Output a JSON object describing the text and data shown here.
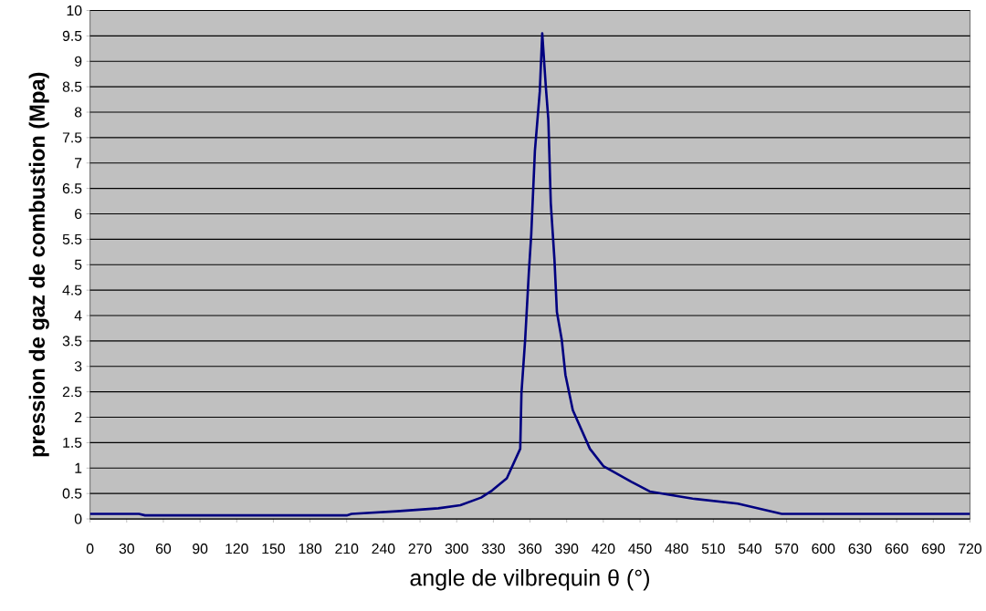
{
  "chart_data": {
    "type": "line",
    "xlabel": "angle de vilbrequin θ  (°)",
    "ylabel": "pression de gaz de combustion (Mpa)",
    "xlim": [
      0,
      720
    ],
    "ylim": [
      0,
      10
    ],
    "xticks": [
      0,
      30,
      60,
      90,
      120,
      150,
      180,
      210,
      240,
      270,
      300,
      330,
      360,
      390,
      420,
      450,
      480,
      510,
      540,
      570,
      600,
      630,
      660,
      690,
      720
    ],
    "yticks": [
      0,
      0.5,
      1,
      1.5,
      2,
      2.5,
      3,
      3.5,
      4,
      4.5,
      5,
      5.5,
      6,
      6.5,
      7,
      7.5,
      8,
      8.5,
      9,
      9.5,
      10
    ],
    "grid": "y",
    "series": [
      {
        "color": "#000080",
        "x": [
          0,
          40,
          45,
          210,
          214,
          251,
          285,
          303,
          320,
          329,
          341,
          352,
          353,
          356,
          359,
          361,
          364,
          368,
          370,
          373,
          375,
          377,
          380,
          382,
          386,
          389,
          395,
          409,
          420,
          443,
          458,
          493,
          530,
          548,
          566,
          720
        ],
        "values": [
          0.1,
          0.1,
          0.07,
          0.07,
          0.1,
          0.15,
          0.21,
          0.27,
          0.42,
          0.56,
          0.8,
          1.38,
          2.48,
          3.52,
          4.83,
          5.59,
          7.24,
          8.41,
          9.55,
          8.48,
          7.86,
          6.21,
          5.1,
          4.07,
          3.52,
          2.83,
          2.14,
          1.38,
          1.04,
          0.73,
          0.54,
          0.4,
          0.3,
          0.2,
          0.1,
          0.1
        ]
      }
    ]
  }
}
